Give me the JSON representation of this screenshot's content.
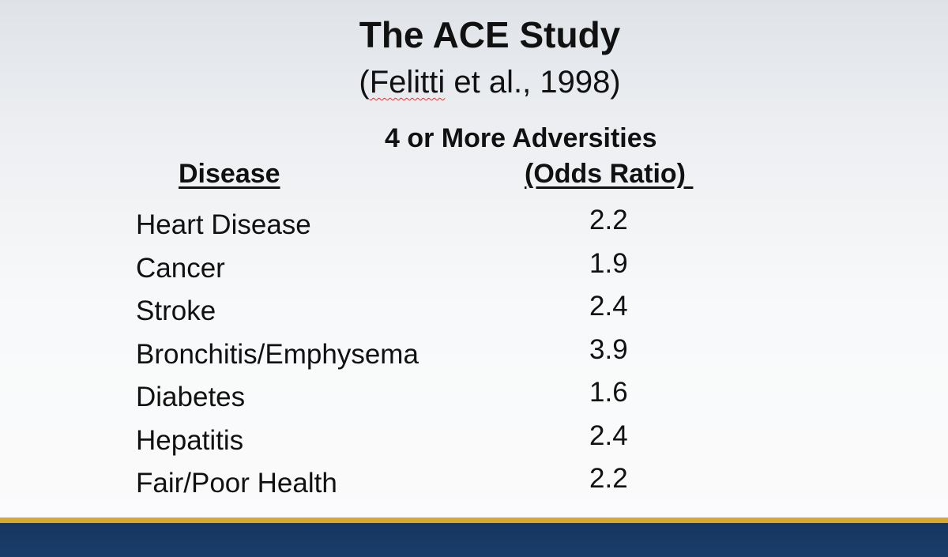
{
  "slide": {
    "title": "The ACE Study",
    "subtitle_author": "Felitti",
    "subtitle_rest": " et al., 1998)",
    "subtitle_open": "("
  },
  "table": {
    "group_header": "4 or More Adversities",
    "col_disease": "Disease",
    "col_odds": "(Odds Ratio) ",
    "rows": [
      {
        "disease": "Heart Disease",
        "odds_ratio": "2.2"
      },
      {
        "disease": "Cancer",
        "odds_ratio": "1.9"
      },
      {
        "disease": "Stroke",
        "odds_ratio": "2.4"
      },
      {
        "disease": "Bronchitis/Emphysema",
        "odds_ratio": "3.9"
      },
      {
        "disease": "Diabetes",
        "odds_ratio": "1.6"
      },
      {
        "disease": "Hepatitis",
        "odds_ratio": "2.4"
      },
      {
        "disease": "Fair/Poor Health",
        "odds_ratio": "2.2"
      }
    ]
  },
  "colors": {
    "footer_navy": "#1a3d6b",
    "footer_gold": "#d7a82c"
  }
}
